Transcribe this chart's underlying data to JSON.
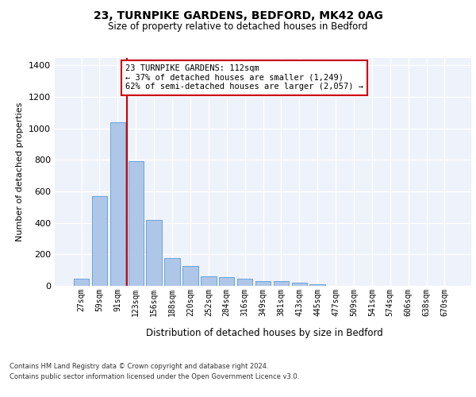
{
  "title1": "23, TURNPIKE GARDENS, BEDFORD, MK42 0AG",
  "title2": "Size of property relative to detached houses in Bedford",
  "xlabel": "Distribution of detached houses by size in Bedford",
  "ylabel": "Number of detached properties",
  "categories": [
    "27sqm",
    "59sqm",
    "91sqm",
    "123sqm",
    "156sqm",
    "188sqm",
    "220sqm",
    "252sqm",
    "284sqm",
    "316sqm",
    "349sqm",
    "381sqm",
    "413sqm",
    "445sqm",
    "477sqm",
    "509sqm",
    "541sqm",
    "574sqm",
    "606sqm",
    "638sqm",
    "670sqm"
  ],
  "values": [
    45,
    570,
    1040,
    790,
    420,
    178,
    128,
    60,
    58,
    45,
    28,
    28,
    20,
    12,
    0,
    0,
    0,
    0,
    0,
    0,
    0
  ],
  "bar_color": "#aec6e8",
  "bar_edge_color": "#5b9bd5",
  "background_color": "#eef2fb",
  "grid_color": "#ffffff",
  "vline_color": "#cc0000",
  "annotation_text": "23 TURNPIKE GARDENS: 112sqm\n← 37% of detached houses are smaller (1,249)\n62% of semi-detached houses are larger (2,057) →",
  "annotation_box_color": "#ffffff",
  "annotation_box_edge": "#cc0000",
  "ylim": [
    0,
    1450
  ],
  "yticks": [
    0,
    200,
    400,
    600,
    800,
    1000,
    1200,
    1400
  ],
  "footer1": "Contains HM Land Registry data © Crown copyright and database right 2024.",
  "footer2": "Contains public sector information licensed under the Open Government Licence v3.0."
}
